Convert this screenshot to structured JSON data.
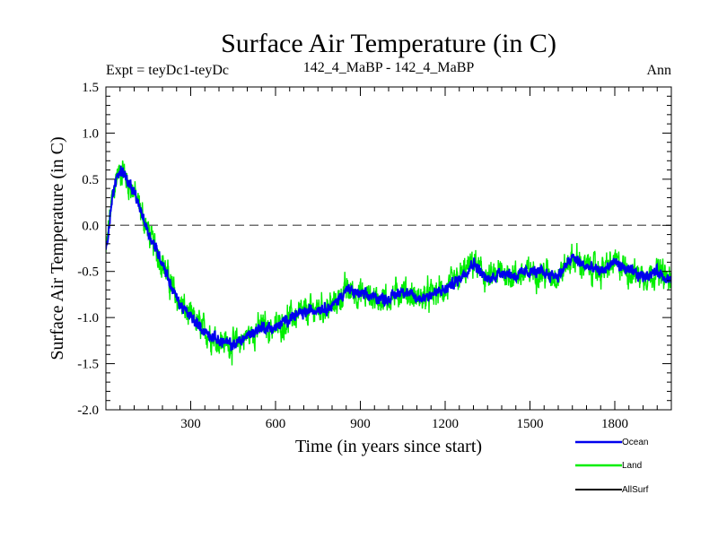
{
  "chart_data": {
    "type": "line",
    "title": "Surface Air Temperature (in C)",
    "subtitle_left": "Expt = teyDc1-teyDc",
    "subtitle_center": "142_4_MaBP - 142_4_MaBP",
    "subtitle_right": "Ann",
    "xlabel": "Time (in years since start)",
    "ylabel": "Surface Air Temperature (in C)",
    "xlim": [
      0,
      2000
    ],
    "ylim": [
      -2.0,
      1.5
    ],
    "xticks": [
      300,
      600,
      900,
      1200,
      1500,
      1800
    ],
    "xtick_labels": [
      "300",
      "600",
      "900",
      "1200",
      "1500",
      "1800"
    ],
    "yticks": [
      -2.0,
      -1.5,
      -1.0,
      -0.5,
      0.0,
      0.5,
      1.0,
      1.5
    ],
    "ytick_labels": [
      "-2.0",
      "-1.5",
      "-1.0",
      "-0.5",
      "0.0",
      "0.5",
      "1.0",
      "1.5"
    ],
    "reference_line": 0.0,
    "legend_position": "below-right",
    "series": [
      {
        "name": "Land",
        "color": "#00ee00",
        "noise_amplitude": 0.22,
        "x": [
          0,
          20,
          40,
          60,
          80,
          100,
          130,
          160,
          200,
          230,
          260,
          300,
          350,
          400,
          450,
          500,
          550,
          600,
          650,
          700,
          750,
          800,
          850,
          900,
          950,
          1000,
          1050,
          1100,
          1150,
          1200,
          1250,
          1300,
          1350,
          1400,
          1450,
          1500,
          1550,
          1600,
          1650,
          1700,
          1750,
          1800,
          1850,
          1900,
          1950,
          2000
        ],
        "values": [
          -0.3,
          0.25,
          0.55,
          0.6,
          0.45,
          0.35,
          0.1,
          -0.15,
          -0.4,
          -0.65,
          -0.85,
          -1.0,
          -1.15,
          -1.25,
          -1.3,
          -1.2,
          -1.1,
          -1.12,
          -1.0,
          -0.95,
          -0.9,
          -0.88,
          -0.7,
          -0.75,
          -0.78,
          -0.8,
          -0.7,
          -0.8,
          -0.75,
          -0.7,
          -0.58,
          -0.4,
          -0.6,
          -0.5,
          -0.55,
          -0.5,
          -0.52,
          -0.55,
          -0.35,
          -0.45,
          -0.5,
          -0.4,
          -0.5,
          -0.55,
          -0.5,
          -0.6
        ]
      },
      {
        "name": "Ocean",
        "color": "#0000ee",
        "noise_amplitude": 0.09,
        "x": [
          0,
          20,
          40,
          60,
          80,
          100,
          130,
          160,
          200,
          230,
          260,
          300,
          350,
          400,
          450,
          500,
          550,
          600,
          650,
          700,
          750,
          800,
          850,
          900,
          950,
          1000,
          1050,
          1100,
          1150,
          1200,
          1250,
          1300,
          1350,
          1400,
          1450,
          1500,
          1550,
          1600,
          1650,
          1700,
          1750,
          1800,
          1850,
          1900,
          1950,
          2000
        ],
        "values": [
          -0.3,
          0.25,
          0.55,
          0.6,
          0.45,
          0.35,
          0.1,
          -0.15,
          -0.4,
          -0.65,
          -0.85,
          -1.0,
          -1.15,
          -1.25,
          -1.3,
          -1.2,
          -1.1,
          -1.12,
          -1.0,
          -0.95,
          -0.9,
          -0.88,
          -0.7,
          -0.75,
          -0.78,
          -0.8,
          -0.7,
          -0.8,
          -0.75,
          -0.7,
          -0.58,
          -0.4,
          -0.6,
          -0.5,
          -0.55,
          -0.5,
          -0.52,
          -0.55,
          -0.35,
          -0.45,
          -0.5,
          -0.4,
          -0.5,
          -0.55,
          -0.5,
          -0.6
        ]
      },
      {
        "name": "AllSurf",
        "color": "#000000",
        "x": [],
        "values": []
      }
    ]
  },
  "legend": [
    {
      "label": "Ocean",
      "color": "#0000ee"
    },
    {
      "label": "Land",
      "color": "#00ee00"
    },
    {
      "label": "AllSurf",
      "color": "#000000"
    }
  ]
}
